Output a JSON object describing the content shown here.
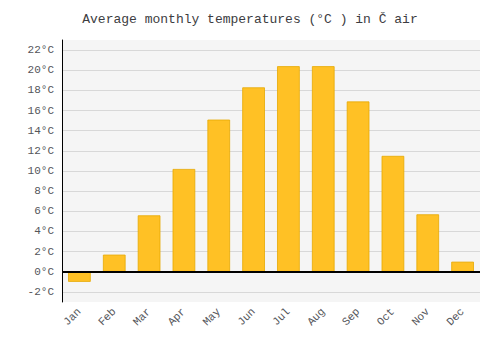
{
  "chart_data": {
    "type": "bar",
    "title": "Average monthly temperatures (°C ) in Č air",
    "categories": [
      "Jan",
      "Feb",
      "Mar",
      "Apr",
      "May",
      "Jun",
      "Jul",
      "Aug",
      "Sep",
      "Oct",
      "Nov",
      "Dec"
    ],
    "values": [
      -1.0,
      1.7,
      5.6,
      10.2,
      15.1,
      18.3,
      20.4,
      20.4,
      16.9,
      11.5,
      5.7,
      1.0
    ],
    "color": "#FFC125",
    "ylim": [
      -3,
      23
    ],
    "yticks": [
      {
        "value": -2,
        "label": "-2°C"
      },
      {
        "value": 0,
        "label": "0°C"
      },
      {
        "value": 2,
        "label": "2°C"
      },
      {
        "value": 4,
        "label": "4°C"
      },
      {
        "value": 6,
        "label": "6°C"
      },
      {
        "value": 8,
        "label": "8°C"
      },
      {
        "value": 10,
        "label": "10°C"
      },
      {
        "value": 12,
        "label": "12°C"
      },
      {
        "value": 14,
        "label": "14°C"
      },
      {
        "value": 16,
        "label": "16°C"
      },
      {
        "value": 18,
        "label": "18°C"
      },
      {
        "value": 20,
        "label": "20°C"
      },
      {
        "value": 22,
        "label": "22°C"
      }
    ],
    "grid": true
  }
}
